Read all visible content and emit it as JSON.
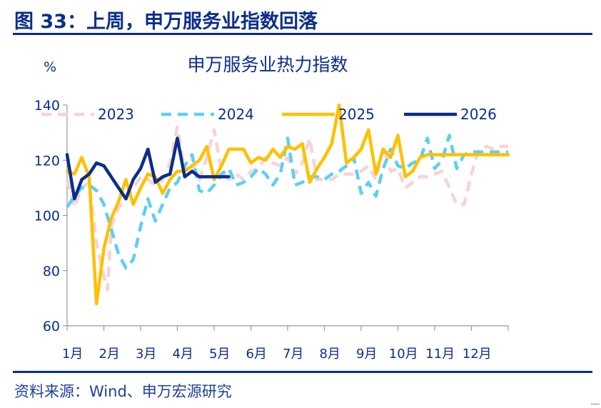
{
  "figure_title": "图 33：上周，申万服务业指数回落",
  "source": "资料来源：Wind、申万宏源研究",
  "chart_data": {
    "type": "line",
    "title": "申万服务业热力指数",
    "y_unit": "%",
    "ylim": [
      60,
      140
    ],
    "yticks": [
      "140",
      "120",
      "100",
      "80",
      "60"
    ],
    "xlim": [
      0,
      12
    ],
    "month_labels": [
      "1月",
      "2月",
      "3月",
      "4月",
      "5月",
      "6月",
      "7月",
      "8月",
      "9月",
      "10月",
      "11月",
      "12月"
    ],
    "legend_position": "top",
    "grid": false,
    "series": [
      {
        "name": "2023",
        "color": "#f7d3d3",
        "dash": "dash",
        "x": [
          0.0,
          0.2,
          0.4,
          0.6,
          0.8,
          1.0,
          1.1,
          1.2,
          1.4,
          1.6,
          1.8,
          2.0,
          2.2,
          2.4,
          2.6,
          2.8,
          3.0,
          3.2,
          3.4,
          3.6,
          3.8,
          4.0,
          4.2,
          4.4,
          4.6,
          4.8,
          5.0,
          5.2,
          5.4,
          5.6,
          5.8,
          6.0,
          6.2,
          6.4,
          6.6,
          6.8,
          7.0,
          7.2,
          7.4,
          7.6,
          7.8,
          8.0,
          8.2,
          8.4,
          8.6,
          8.8,
          9.0,
          9.2,
          9.4,
          9.6,
          9.8,
          10.0,
          10.2,
          10.4,
          10.6,
          10.8,
          11.0,
          11.2,
          11.4,
          11.6,
          11.8,
          12.0
        ],
        "values": [
          113,
          103,
          110,
          112,
          90,
          78,
          73,
          96,
          103,
          106,
          110,
          114,
          113,
          111,
          113,
          119,
          132,
          116,
          119,
          113,
          121,
          131,
          116,
          113,
          115,
          113,
          116,
          117,
          121,
          119,
          118,
          121,
          115,
          119,
          128,
          113,
          113,
          113,
          115,
          115,
          115,
          116,
          118,
          113,
          125,
          116,
          117,
          110,
          112,
          114,
          114,
          115,
          116,
          110,
          104,
          104,
          115,
          124,
          125,
          124,
          125,
          125
        ]
      },
      {
        "name": "2024",
        "color": "#5bd0f2",
        "dash": "dash",
        "x": [
          0.0,
          0.2,
          0.4,
          0.6,
          0.8,
          1.0,
          1.2,
          1.4,
          1.6,
          1.8,
          2.0,
          2.2,
          2.4,
          2.6,
          2.8,
          3.0,
          3.2,
          3.4,
          3.6,
          3.8,
          4.0,
          4.2,
          4.4,
          4.6,
          4.8,
          5.0,
          5.2,
          5.4,
          5.6,
          5.8,
          6.0,
          6.2,
          6.4,
          6.6,
          6.8,
          7.0,
          7.2,
          7.4,
          7.6,
          7.8,
          8.0,
          8.2,
          8.4,
          8.6,
          8.8,
          9.0,
          9.2,
          9.4,
          9.6,
          9.8,
          10.0,
          10.2,
          10.4,
          10.6,
          10.8,
          11.0,
          11.2,
          11.4,
          11.6,
          11.8,
          12.0
        ],
        "values": [
          103,
          107,
          110,
          111,
          109,
          104,
          95,
          86,
          81,
          84,
          96,
          106,
          98,
          104,
          110,
          112,
          118,
          122,
          109,
          108,
          111,
          115,
          117,
          111,
          112,
          114,
          117,
          115,
          111,
          115,
          128,
          111,
          112,
          114,
          114,
          113,
          115,
          116,
          118,
          121,
          108,
          112,
          107,
          117,
          124,
          118,
          117,
          119,
          120,
          128,
          117,
          120,
          129,
          117,
          122,
          123,
          123,
          123,
          123,
          123,
          123
        ]
      },
      {
        "name": "2025",
        "color": "#ffc000",
        "dash": "solid",
        "x": [
          0.0,
          0.2,
          0.4,
          0.6,
          0.8,
          1.0,
          1.2,
          1.4,
          1.6,
          1.8,
          2.0,
          2.2,
          2.4,
          2.6,
          2.8,
          3.0,
          3.2,
          3.4,
          3.6,
          3.8,
          4.0,
          4.2,
          4.4,
          4.6,
          4.8,
          5.0,
          5.2,
          5.4,
          5.6,
          5.8,
          6.0,
          6.2,
          6.4,
          6.6,
          6.8,
          7.0,
          7.2,
          7.4,
          7.6,
          7.8,
          8.0,
          8.2,
          8.4,
          8.6,
          8.8,
          9.0,
          9.2,
          9.4,
          9.6,
          9.8,
          10.0,
          10.2,
          10.4,
          10.6,
          10.8,
          11.0,
          11.2,
          11.4,
          11.6,
          11.8,
          12.0
        ],
        "values": [
          116,
          115,
          121,
          114,
          68,
          88,
          99,
          105,
          113,
          104,
          110,
          115,
          114,
          108,
          113,
          116,
          116,
          118,
          120,
          125,
          113,
          118,
          124,
          124,
          124,
          119,
          121,
          120,
          124,
          121,
          125,
          124,
          126,
          112,
          117,
          121,
          126,
          140,
          119,
          121,
          124,
          131,
          115,
          124,
          121,
          129,
          114,
          116,
          121,
          122,
          122,
          122,
          122,
          122,
          122,
          122,
          122,
          122,
          122,
          122,
          122
        ]
      },
      {
        "name": "2026",
        "color": "#0b2e8a",
        "dash": "solid",
        "x": [
          0.0,
          0.2,
          0.4,
          0.6,
          0.8,
          1.0,
          1.2,
          1.4,
          1.6,
          1.8,
          2.0,
          2.2,
          2.4,
          2.6,
          2.8,
          3.0,
          3.2,
          3.4,
          3.6,
          3.8,
          4.0,
          4.2,
          4.4
        ],
        "values": [
          122,
          106,
          113,
          115,
          119,
          118,
          114,
          110,
          106,
          113,
          117,
          124,
          112,
          114,
          115,
          128,
          114,
          116,
          114,
          114,
          114,
          114,
          114
        ]
      }
    ]
  }
}
